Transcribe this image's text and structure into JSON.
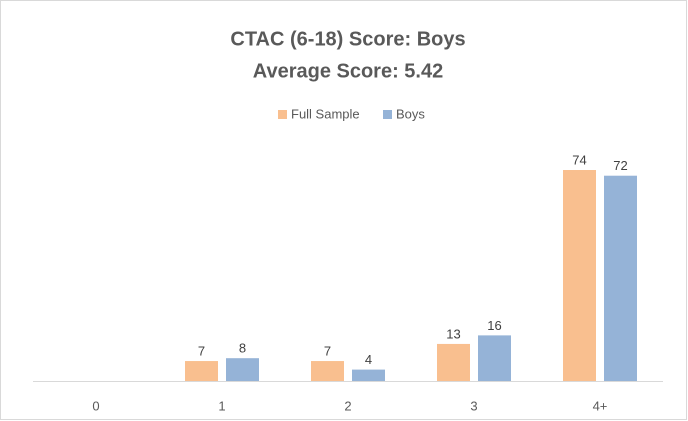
{
  "chart_data": {
    "type": "bar",
    "title": "CTAC (6-18) Score: Boys",
    "subtitle": "Average Score: 5.42",
    "categories": [
      "0",
      "1",
      "2",
      "3",
      "4+"
    ],
    "series": [
      {
        "name": "Full Sample",
        "color": "#f9bf8f",
        "values": [
          null,
          7,
          7,
          13,
          74
        ]
      },
      {
        "name": "Boys",
        "color": "#95b3d7",
        "values": [
          null,
          8,
          4,
          16,
          72
        ]
      }
    ],
    "legend": "top"
  }
}
